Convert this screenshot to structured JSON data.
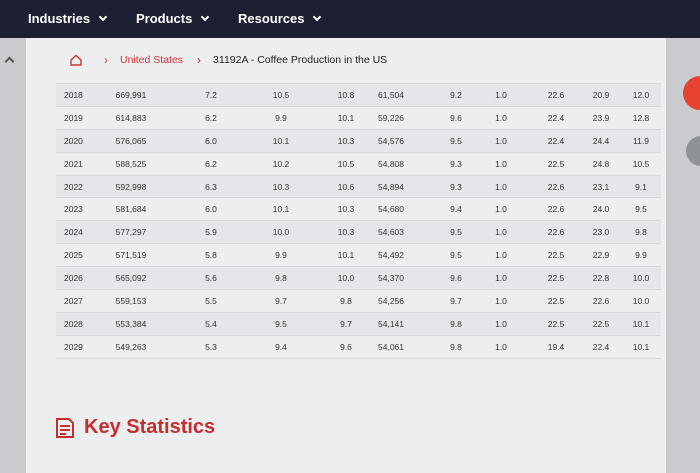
{
  "nav": {
    "items": [
      "Industries",
      "Products",
      "Resources"
    ]
  },
  "breadcrumb": {
    "country": "United States",
    "current": "31192A - Coffee Production in the US"
  },
  "table": {
    "rows": [
      {
        "year": "2018",
        "c1": "669,991",
        "c2": "7.2",
        "c3": "10.5",
        "c4": "10.8",
        "c5": "61,504",
        "c6": "9.2",
        "c7": "1.0",
        "c8": "22.6",
        "c9": "20.9",
        "c10": "12.0"
      },
      {
        "year": "2019",
        "c1": "614,883",
        "c2": "6.2",
        "c3": "9.9",
        "c4": "10.1",
        "c5": "59,226",
        "c6": "9.6",
        "c7": "1.0",
        "c8": "22.4",
        "c9": "23.9",
        "c10": "12.8"
      },
      {
        "year": "2020",
        "c1": "576,065",
        "c2": "6.0",
        "c3": "10.1",
        "c4": "10.3",
        "c5": "54,576",
        "c6": "9.5",
        "c7": "1.0",
        "c8": "22.4",
        "c9": "24.4",
        "c10": "11.9"
      },
      {
        "year": "2021",
        "c1": "588,525",
        "c2": "6.2",
        "c3": "10.2",
        "c4": "10.5",
        "c5": "54,808",
        "c6": "9.3",
        "c7": "1.0",
        "c8": "22.5",
        "c9": "24.8",
        "c10": "10.5"
      },
      {
        "year": "2022",
        "c1": "592,998",
        "c2": "6.3",
        "c3": "10.3",
        "c4": "10.6",
        "c5": "54,894",
        "c6": "9.3",
        "c7": "1.0",
        "c8": "22.6",
        "c9": "23.1",
        "c10": "9.1"
      },
      {
        "year": "2023",
        "c1": "581,684",
        "c2": "6.0",
        "c3": "10.1",
        "c4": "10.3",
        "c5": "54,680",
        "c6": "9.4",
        "c7": "1.0",
        "c8": "22.6",
        "c9": "24.0",
        "c10": "9.5"
      },
      {
        "year": "2024",
        "c1": "577,297",
        "c2": "5.9",
        "c3": "10.0",
        "c4": "10.3",
        "c5": "54,603",
        "c6": "9.5",
        "c7": "1.0",
        "c8": "22.6",
        "c9": "23.0",
        "c10": "9.8"
      },
      {
        "year": "2025",
        "c1": "571,519",
        "c2": "5.8",
        "c3": "9.9",
        "c4": "10.1",
        "c5": "54,492",
        "c6": "9.5",
        "c7": "1.0",
        "c8": "22.5",
        "c9": "22.9",
        "c10": "9.9"
      },
      {
        "year": "2026",
        "c1": "565,092",
        "c2": "5.6",
        "c3": "9.8",
        "c4": "10.0",
        "c5": "54,370",
        "c6": "9.6",
        "c7": "1.0",
        "c8": "22.5",
        "c9": "22.8",
        "c10": "10.0"
      },
      {
        "year": "2027",
        "c1": "559,153",
        "c2": "5.5",
        "c3": "9.7",
        "c4": "9.8",
        "c5": "54,256",
        "c6": "9.7",
        "c7": "1.0",
        "c8": "22.5",
        "c9": "22.6",
        "c10": "10.0"
      },
      {
        "year": "2028",
        "c1": "553,384",
        "c2": "5.4",
        "c3": "9.5",
        "c4": "9.7",
        "c5": "54,141",
        "c6": "9.8",
        "c7": "1.0",
        "c8": "22.5",
        "c9": "22.5",
        "c10": "10.1"
      },
      {
        "year": "2029",
        "c1": "549,263",
        "c2": "5.3",
        "c3": "9.4",
        "c4": "9.6",
        "c5": "54,061",
        "c6": "9.8",
        "c7": "1.0",
        "c8": "19.4",
        "c9": "22.4",
        "c10": "10.1"
      }
    ]
  },
  "key_statistics": {
    "title": "Key Statistics"
  },
  "colors": {
    "nav_bg": "#1d2033",
    "accent": "#c62d2d"
  },
  "icons": {
    "home": "home-icon",
    "key_stats": "document-icon"
  }
}
